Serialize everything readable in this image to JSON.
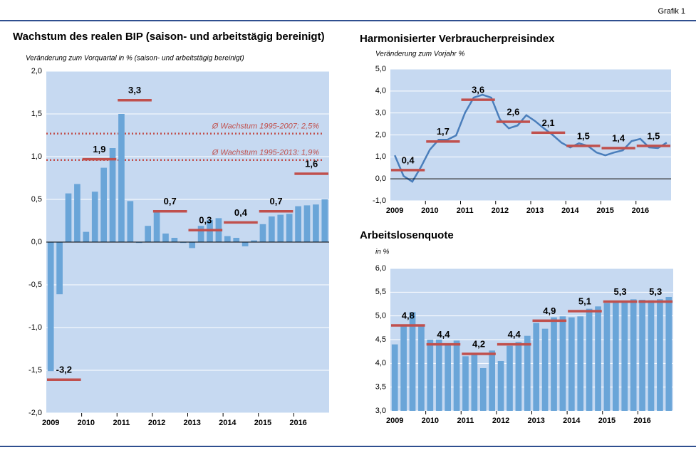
{
  "header": "Grafik 1",
  "chart_data": [
    {
      "type": "bar",
      "title": "Wachstum des realen BIP (saison- und arbeitstägig bereinigt)",
      "subtitle": "Veränderung zum Vorquartal in % (saison- und arbeitstägig bereinigt)",
      "categories": [
        "2009",
        null,
        null,
        null,
        "2010",
        null,
        null,
        null,
        "2011",
        null,
        null,
        null,
        "2012",
        null,
        null,
        null,
        "2013",
        null,
        null,
        null,
        "2014",
        null,
        null,
        null,
        "2015",
        null,
        null,
        null,
        "2016",
        null,
        null,
        null
      ],
      "series": [
        {
          "color": "#6aa5d8",
          "values": [
            -1.51,
            -0.61,
            0.57,
            0.68,
            0.12,
            0.59,
            0.87,
            1.1,
            1.5,
            0.48,
            -0.01,
            0.19,
            0.36,
            0.1,
            0.05,
            -0.01,
            -0.07,
            0.19,
            0.26,
            0.28,
            0.07,
            0.05,
            -0.05,
            0.02,
            0.21,
            0.3,
            0.32,
            0.33,
            0.42,
            0.43,
            0.44,
            0.5
          ]
        }
      ],
      "annual_averages": {
        "color": "#c0504d",
        "values": [
          -1.61,
          0.97,
          1.66,
          0.36,
          0.14,
          0.23,
          0.36,
          0.8
        ]
      },
      "annotations": [
        "-3,2",
        "1,9",
        "3,3",
        "0,7",
        "0,3",
        "0,4",
        "0,7",
        "1,6"
      ],
      "reference_lines": [
        {
          "value": 1.27,
          "label": "Ø Wachstum 1995-2007: 2,5%"
        },
        {
          "value": 0.96,
          "label": "Ø Wachstum 1995-2013: 1,9%"
        }
      ],
      "reference_color": "#c0504d",
      "ylim": [
        -2,
        2
      ],
      "yticks": [
        {
          "value": 2,
          "label": "2,0"
        },
        {
          "value": 1.5,
          "label": "1,5"
        },
        {
          "value": 1,
          "label": "1,0"
        },
        {
          "value": 0.5,
          "label": "0,5"
        },
        {
          "value": 0,
          "label": "0,0"
        },
        {
          "value": -0.5,
          "label": "-0,5"
        },
        {
          "value": -1,
          "label": "-1,0"
        },
        {
          "value": -1.5,
          "label": "-1,5"
        },
        {
          "value": -2,
          "label": "-2,0"
        }
      ],
      "grid": true
    },
    {
      "type": "line",
      "title": "Harmonisierter Verbraucherpreisindex",
      "subtitle": "Veränderung zum Vorjahr  %",
      "categories": [
        "2009",
        null,
        null,
        null,
        "2010",
        null,
        null,
        null,
        "2011",
        null,
        null,
        null,
        "2012",
        null,
        null,
        null,
        "2013",
        null,
        null,
        null,
        "2014",
        null,
        null,
        null,
        "2015",
        null,
        null,
        null,
        "2016",
        null,
        null,
        null
      ],
      "series": [
        {
          "color": "#4a7ebb",
          "values": [
            1.07,
            0.13,
            -0.13,
            0.55,
            1.33,
            1.78,
            1.78,
            1.98,
            3.0,
            3.7,
            3.83,
            3.7,
            2.7,
            2.3,
            2.43,
            2.9,
            2.63,
            2.3,
            2.0,
            1.65,
            1.43,
            1.62,
            1.5,
            1.2,
            1.07,
            1.2,
            1.3,
            1.72,
            1.82,
            1.43,
            1.4,
            1.65
          ]
        }
      ],
      "annual_averages": {
        "color": "#c0504d",
        "values": [
          0.4,
          1.7,
          3.6,
          2.6,
          2.1,
          1.5,
          1.4,
          1.5
        ],
        "value_labels": [
          "0,4",
          "1,7",
          "3,6",
          "2,6",
          "2,1",
          "1,5",
          "1,4",
          "1,5"
        ]
      },
      "ylim": [
        -1,
        5
      ],
      "yticks": [
        {
          "value": 5,
          "label": "5,0"
        },
        {
          "value": 4,
          "label": "4,0"
        },
        {
          "value": 3,
          "label": "3,0"
        },
        {
          "value": 2,
          "label": "2,0"
        },
        {
          "value": 1,
          "label": "1,0"
        },
        {
          "value": 0,
          "label": "0,0"
        },
        {
          "value": -1,
          "label": "-1,0"
        }
      ],
      "grid": true
    },
    {
      "type": "bar",
      "title": "Arbeitslosenquote",
      "subtitle": "in %",
      "categories": [
        "2009",
        null,
        null,
        null,
        "2010",
        null,
        null,
        null,
        "2011",
        null,
        null,
        null,
        "2012",
        null,
        null,
        null,
        "2013",
        null,
        null,
        null,
        "2014",
        null,
        null,
        null,
        "2015",
        null,
        null,
        null,
        "2016",
        null,
        null,
        null
      ],
      "series": [
        {
          "color": "#6aa5d8",
          "values": [
            4.4,
            4.82,
            5.08,
            4.82,
            4.5,
            4.5,
            4.42,
            4.48,
            4.15,
            4.2,
            3.9,
            4.27,
            4.05,
            4.37,
            4.45,
            4.58,
            4.85,
            4.73,
            4.97,
            4.99,
            4.97,
            4.99,
            5.15,
            5.2,
            5.27,
            5.29,
            5.3,
            5.35,
            5.34,
            5.33,
            5.35,
            5.4
          ]
        }
      ],
      "annual_averages": {
        "color": "#c0504d",
        "values": [
          4.8,
          4.4,
          4.2,
          4.4,
          4.9,
          5.1,
          5.3,
          5.3
        ],
        "value_labels": [
          "4,8",
          "4,4",
          "4,2",
          "4,4",
          "4,9",
          "5,1",
          "5,3",
          "5,3"
        ]
      },
      "ylim": [
        3,
        6
      ],
      "yticks": [
        {
          "value": 6,
          "label": "6,0"
        },
        {
          "value": 5.5,
          "label": "5,5"
        },
        {
          "value": 5,
          "label": "5,0"
        },
        {
          "value": 4.5,
          "label": "4,5"
        },
        {
          "value": 4,
          "label": "4,0"
        },
        {
          "value": 3.5,
          "label": "3,5"
        },
        {
          "value": 3,
          "label": "3,0"
        }
      ],
      "grid": true
    }
  ]
}
